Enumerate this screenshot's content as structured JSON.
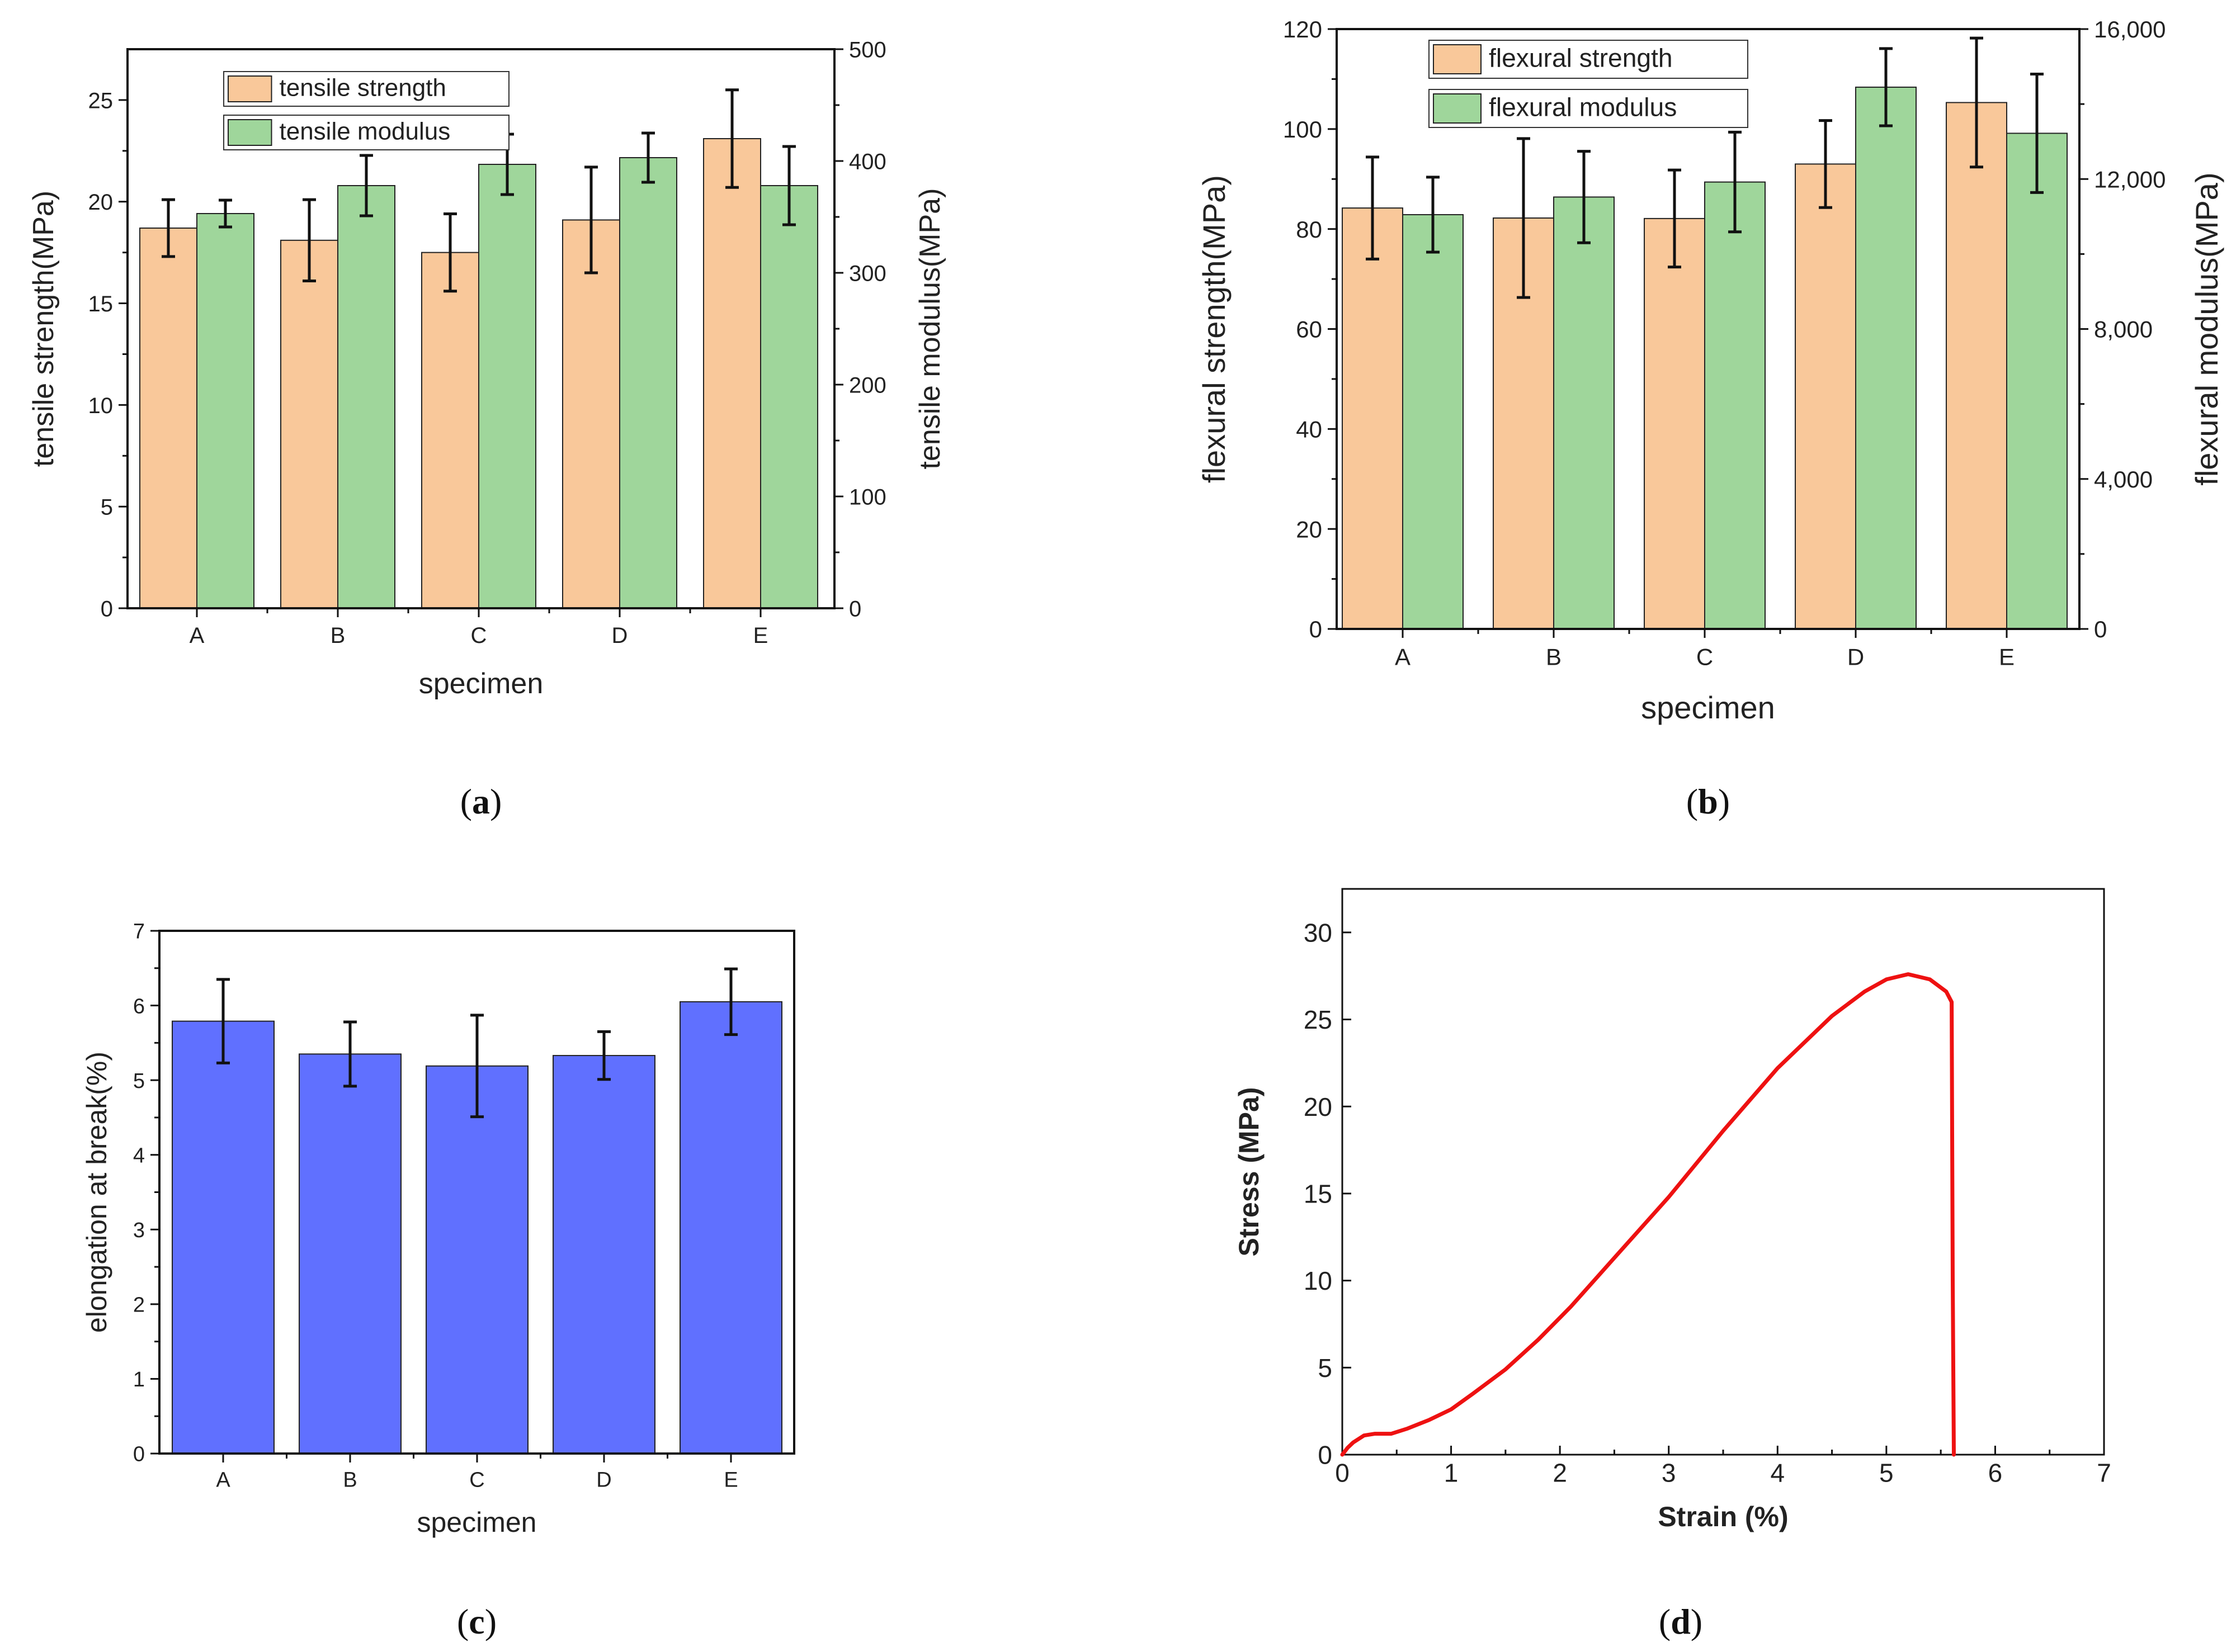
{
  "chart_data": [
    {
      "id": "a",
      "type": "bar",
      "caption": {
        "open": "(",
        "letter": "a",
        "close": ")"
      },
      "categories": [
        "A",
        "B",
        "C",
        "D",
        "E"
      ],
      "xlabel": "specimen",
      "ylabel": "tensile strength(MPa)",
      "y2label": "tensile modulus(MPa)",
      "ylim": [
        0,
        27.5
      ],
      "y2lim": [
        0,
        500
      ],
      "yticks": [
        0,
        5,
        10,
        15,
        20,
        25
      ],
      "y2ticks": [
        0,
        100,
        200,
        300,
        400,
        500
      ],
      "ytick_labels": [
        "0",
        "5",
        "10",
        "15",
        "20",
        "25"
      ],
      "y2tick_labels": [
        "0",
        "100",
        "200",
        "300",
        "400",
        "500"
      ],
      "series": [
        {
          "name": "tensile strength",
          "axis": "left",
          "color": "#f9c89a",
          "values": [
            18.7,
            18.1,
            17.5,
            19.1,
            23.1
          ],
          "errors": [
            1.4,
            2.0,
            1.9,
            2.6,
            2.4
          ]
        },
        {
          "name": "tensile modulus",
          "axis": "right",
          "color": "#9fd69b",
          "values": [
            353,
            378,
            397,
            403,
            378
          ],
          "errors": [
            12,
            27,
            27,
            22,
            35
          ]
        }
      ]
    },
    {
      "id": "b",
      "type": "bar",
      "caption": {
        "open": "(",
        "letter": "b",
        "close": ")"
      },
      "categories": [
        "A",
        "B",
        "C",
        "D",
        "E"
      ],
      "xlabel": "specimen",
      "ylabel": "flexural strength(MPa)",
      "y2label": "flexural modulus(MPa)",
      "ylim": [
        0,
        120
      ],
      "y2lim": [
        0,
        16000
      ],
      "yticks": [
        0,
        20,
        40,
        60,
        80,
        100,
        120
      ],
      "y2ticks": [
        0,
        4000,
        8000,
        12000,
        16000
      ],
      "ytick_labels": [
        "0",
        "20",
        "40",
        "60",
        "80",
        "100",
        "120"
      ],
      "y2tick_labels": [
        "0",
        "4,000",
        "8,000",
        "12,000",
        "16,000"
      ],
      "series": [
        {
          "name": "flexural strength",
          "axis": "left",
          "color": "#f9c89a",
          "values": [
            84.2,
            82.2,
            82.1,
            93.0,
            105.3
          ],
          "errors": [
            10.2,
            15.9,
            9.7,
            8.7,
            12.9
          ]
        },
        {
          "name": "flexural modulus",
          "axis": "right",
          "color": "#9fd69b",
          "values": [
            11050,
            11520,
            11920,
            14450,
            13220
          ],
          "errors": [
            1000,
            1220,
            1330,
            1030,
            1580
          ]
        }
      ]
    },
    {
      "id": "c",
      "type": "bar",
      "caption": {
        "open": "(",
        "letter": "c",
        "close": ")"
      },
      "categories": [
        "A",
        "B",
        "C",
        "D",
        "E"
      ],
      "xlabel": "specimen",
      "ylabel": "elongation at break(%)",
      "ylim": [
        0,
        7
      ],
      "yticks": [
        0,
        1,
        2,
        3,
        4,
        5,
        6,
        7
      ],
      "ytick_labels": [
        "0",
        "1",
        "2",
        "3",
        "4",
        "5",
        "6",
        "7"
      ],
      "series": [
        {
          "name": "elongation at break",
          "color": "#6070ff",
          "values": [
            5.79,
            5.35,
            5.19,
            5.33,
            6.05
          ],
          "errors": [
            0.56,
            0.43,
            0.68,
            0.32,
            0.44
          ]
        }
      ]
    },
    {
      "id": "d",
      "type": "line",
      "caption": {
        "open": "(",
        "letter": "d",
        "close": ")"
      },
      "xlabel": "Strain (%)",
      "ylabel": "Stress (MPa)",
      "xlim": [
        0,
        7
      ],
      "ylim": [
        0,
        32.5
      ],
      "xticks": [
        0,
        1,
        2,
        3,
        4,
        5,
        6,
        7
      ],
      "yticks": [
        0,
        5,
        10,
        15,
        20,
        25,
        30
      ],
      "xtick_labels": [
        "0",
        "1",
        "2",
        "3",
        "4",
        "5",
        "6",
        "7"
      ],
      "ytick_labels": [
        "0",
        "5",
        "10",
        "15",
        "20",
        "25",
        "30"
      ],
      "series": [
        {
          "name": "stress-strain",
          "color": "#ee1111",
          "x": [
            0,
            0.05,
            0.1,
            0.2,
            0.3,
            0.45,
            0.6,
            0.8,
            1.0,
            1.2,
            1.5,
            1.8,
            2.1,
            2.5,
            3.0,
            3.5,
            4.0,
            4.5,
            4.8,
            5.0,
            5.2,
            5.4,
            5.55,
            5.6,
            5.61,
            5.62
          ],
          "y": [
            0,
            0.4,
            0.7,
            1.1,
            1.2,
            1.2,
            1.5,
            2.0,
            2.6,
            3.5,
            4.9,
            6.6,
            8.5,
            11.3,
            14.8,
            18.6,
            22.2,
            25.2,
            26.6,
            27.3,
            27.6,
            27.3,
            26.6,
            26.0,
            10.0,
            0
          ]
        }
      ]
    }
  ]
}
